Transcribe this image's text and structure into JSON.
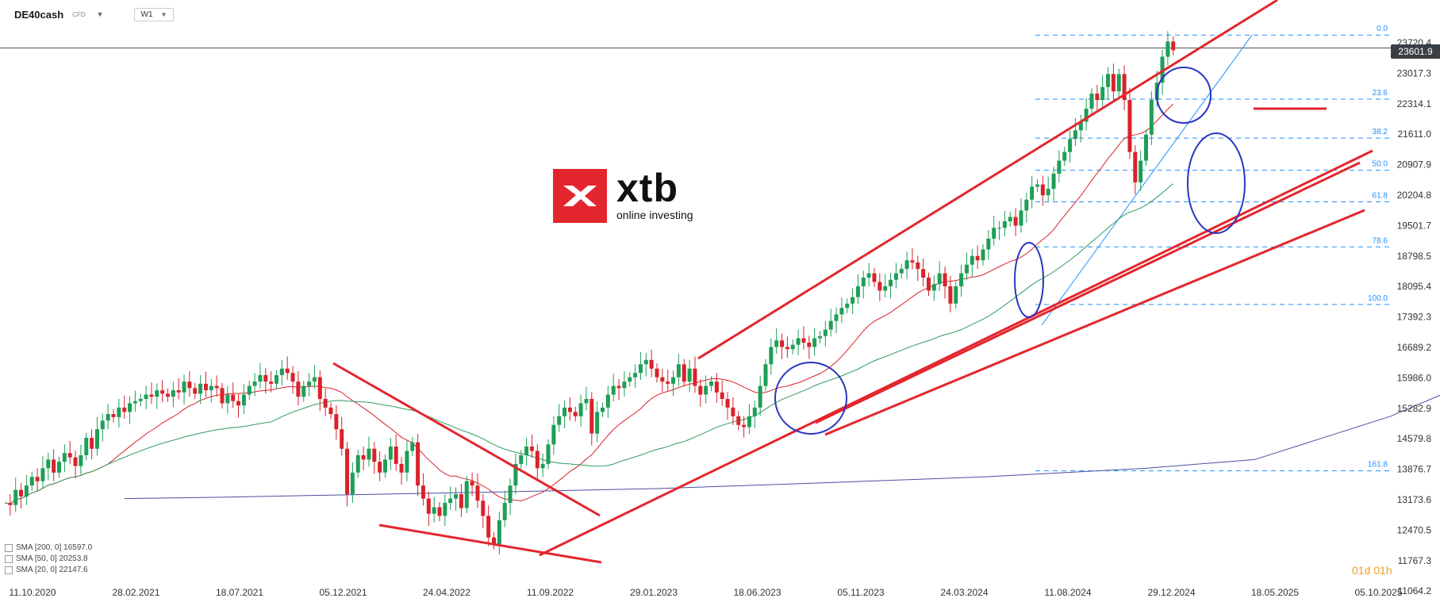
{
  "toolbar": {
    "symbol": "DE40cash",
    "symbol_sub": "CFD",
    "timeframe": "W1"
  },
  "price_badge": "23601.9",
  "logo": {
    "word": "xtb",
    "tagline": "online investing"
  },
  "countdown": "01d 01h",
  "legend": [
    {
      "label": "SMA [200, 0] 16597.0"
    },
    {
      "label": "SMA [50, 0] 20253.8"
    },
    {
      "label": "SMA [20, 0] 22147.6"
    }
  ],
  "colors": {
    "up": "#1e9e58",
    "down": "#d9222a",
    "sma20": "#d9222a",
    "sma50": "#2f9a5e",
    "sma200": "#4a4fa0",
    "fib": "#1e90ff",
    "trend": "#e3262d",
    "ellipse": "#2a35c0"
  },
  "chart_data": {
    "type": "candlestick",
    "y_ticks": [
      "23017.3",
      "22314.1",
      "21611.0",
      "20907.9",
      "20204.8",
      "19501.7",
      "18798.5",
      "18095.4",
      "17392.3",
      "16689.2",
      "15986.0",
      "15282.9",
      "14579.8",
      "13876.7",
      "13173.6",
      "12470.5",
      "11767.3",
      "11064.2"
    ],
    "y_top_partial": "23720.4",
    "x_ticks": [
      "11.10.2020",
      "28.02.2021",
      "18.07.2021",
      "05.12.2021",
      "24.04.2022",
      "11.09.2022",
      "29.01.2023",
      "18.06.2023",
      "05.11.2023",
      "24.03.2024",
      "11.08.2024",
      "29.12.2024",
      "18.05.2025",
      "05.10.2025"
    ],
    "last_price": 23601.9,
    "fib_levels": [
      {
        "label": "0.0",
        "value": 23900
      },
      {
        "label": "23.6",
        "value": 22420
      },
      {
        "label": "38.2",
        "value": 21520
      },
      {
        "label": "50.0",
        "value": 20780
      },
      {
        "label": "61.8",
        "value": 20050
      },
      {
        "label": "78.6",
        "value": 19010
      },
      {
        "label": "100.0",
        "value": 17680
      },
      {
        "label": "161.8",
        "value": 13840
      }
    ],
    "closes": [
      13100,
      13050,
      13400,
      13250,
      13500,
      13700,
      13600,
      13900,
      14100,
      13800,
      14050,
      14250,
      14150,
      13950,
      14200,
      14600,
      14350,
      14800,
      15000,
      15150,
      15080,
      15300,
      15200,
      15400,
      15450,
      15500,
      15600,
      15550,
      15700,
      15620,
      15550,
      15700,
      15650,
      15900,
      15750,
      15620,
      15850,
      15700,
      15800,
      15750,
      15400,
      15600,
      15450,
      15350,
      15600,
      15800,
      15900,
      16050,
      15900,
      15850,
      16050,
      16200,
      16100,
      15900,
      15550,
      15800,
      15900,
      16000,
      15500,
      15300,
      15150,
      14800,
      14350,
      13300,
      13800,
      14200,
      14100,
      14350,
      14050,
      13800,
      14100,
      14400,
      14000,
      13800,
      14300,
      14500,
      13500,
      13200,
      12850,
      13000,
      12800,
      13100,
      13200,
      13300,
      12980,
      13600,
      13500,
      13150,
      12800,
      12300,
      12150,
      12700,
      13100,
      13500,
      14000,
      14200,
      14400,
      14300,
      13900,
      14000,
      14450,
      14900,
      15100,
      15300,
      15200,
      15100,
      15400,
      15500,
      14700,
      15200,
      15300,
      15600,
      15800,
      15750,
      15900,
      16000,
      16100,
      16300,
      16400,
      16200,
      16000,
      15900,
      15850,
      16000,
      16300,
      15900,
      16200,
      15800,
      15600,
      15800,
      15900,
      15650,
      15500,
      15300,
      15100,
      14900,
      14850,
      15100,
      15300,
      15800,
      16300,
      16700,
      16850,
      16700,
      16650,
      16750,
      16900,
      16800,
      16700,
      16900,
      16950,
      17100,
      17300,
      17450,
      17600,
      17700,
      17850,
      18100,
      18300,
      18400,
      18200,
      18000,
      18100,
      18250,
      18400,
      18500,
      18700,
      18650,
      18500,
      18300,
      18000,
      18150,
      18400,
      18100,
      17700,
      18100,
      18400,
      18600,
      18800,
      18700,
      18950,
      19200,
      19450,
      19450,
      19600,
      19700,
      19500,
      19850,
      20100,
      20400,
      20450,
      20200,
      20350,
      20700,
      21000,
      21200,
      21500,
      21700,
      21900,
      22200,
      22550,
      22400,
      22700,
      23000,
      22600,
      23000,
      22400,
      21200,
      20500,
      21000,
      21600,
      22400,
      22800,
      23400,
      23750,
      23550
    ]
  }
}
